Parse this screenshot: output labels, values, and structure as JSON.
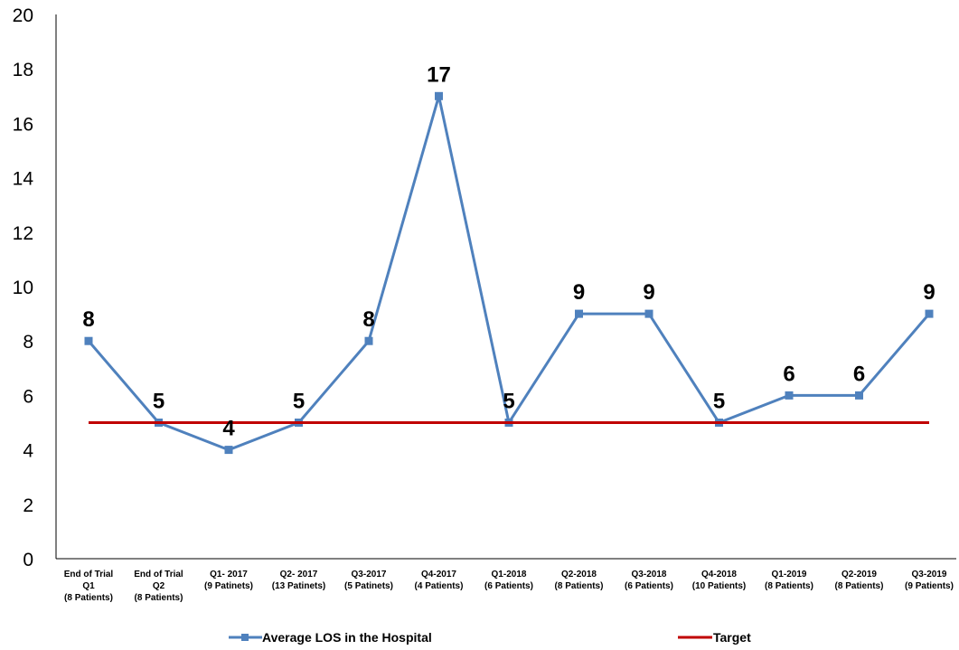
{
  "chart_data": {
    "type": "line",
    "categories": [
      [
        "End of Trial",
        "Q1",
        "(8 Patients)"
      ],
      [
        "End of Trial",
        "Q2",
        "(8 Patients)"
      ],
      [
        "Q1- 2017",
        "(9 Patinets)"
      ],
      [
        "Q2- 2017",
        "(13 Patinets)"
      ],
      [
        "Q3-2017",
        "(5 Patinets)"
      ],
      [
        "Q4-2017",
        "(4 Patients)"
      ],
      [
        "Q1-2018",
        "(6 Patients)"
      ],
      [
        "Q2-2018",
        "(8 Patients)"
      ],
      [
        "Q3-2018",
        "(6 Patients)"
      ],
      [
        "Q4-2018",
        "(10 Patients)"
      ],
      [
        "Q1-2019",
        "(8 Patients)"
      ],
      [
        "Q2-2019",
        "(8 Patients)"
      ],
      [
        "Q3-2019",
        "(9 Patients)"
      ]
    ],
    "series": [
      {
        "name": "Average LOS in the Hospital",
        "color": "#4F81BD",
        "marker": "square",
        "values": [
          8,
          5,
          4,
          5,
          8,
          17,
          5,
          9,
          9,
          5,
          6,
          6,
          9
        ],
        "data_labels": [
          "8",
          "5",
          "4",
          "5",
          "8",
          "17",
          "5",
          "9",
          "9",
          "5",
          "6",
          "6",
          "9"
        ]
      },
      {
        "name": "Target",
        "color": "#C00000",
        "marker": "none",
        "values": [
          5,
          5,
          5,
          5,
          5,
          5,
          5,
          5,
          5,
          5,
          5,
          5,
          5
        ]
      }
    ],
    "ylim": [
      0,
      20
    ],
    "yticks": [
      "0",
      "2",
      "4",
      "6",
      "8",
      "10",
      "12",
      "14",
      "16",
      "18",
      "20"
    ],
    "title": "",
    "xlabel": "",
    "ylabel": "",
    "grid": false,
    "legend_position": "bottom"
  }
}
